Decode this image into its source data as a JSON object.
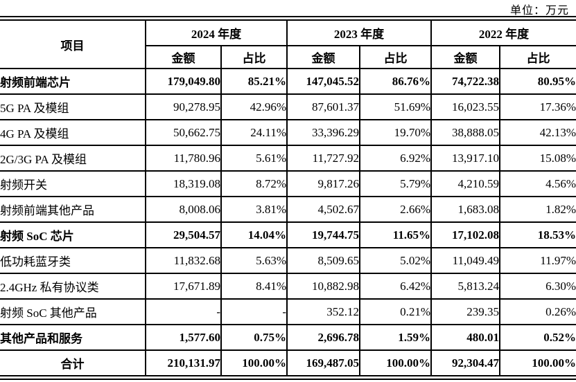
{
  "unit_label": "单位：万元",
  "table": {
    "header": {
      "item": "项目",
      "years": [
        "2024 年度",
        "2023 年度",
        "2022 年度"
      ],
      "sub_labels": [
        "金额",
        "占比"
      ]
    },
    "rows": [
      {
        "label": "射频前端芯片",
        "bold": true,
        "center": false,
        "values": [
          "179,049.80",
          "85.21%",
          "147,045.52",
          "86.76%",
          "74,722.38",
          "80.95%"
        ]
      },
      {
        "label": "5G PA 及模组",
        "bold": false,
        "center": false,
        "values": [
          "90,278.95",
          "42.96%",
          "87,601.37",
          "51.69%",
          "16,023.55",
          "17.36%"
        ]
      },
      {
        "label": "4G PA 及模组",
        "bold": false,
        "center": false,
        "values": [
          "50,662.75",
          "24.11%",
          "33,396.29",
          "19.70%",
          "38,888.05",
          "42.13%"
        ]
      },
      {
        "label": "2G/3G PA 及模组",
        "bold": false,
        "center": false,
        "values": [
          "11,780.96",
          "5.61%",
          "11,727.92",
          "6.92%",
          "13,917.10",
          "15.08%"
        ]
      },
      {
        "label": "射频开关",
        "bold": false,
        "center": false,
        "values": [
          "18,319.08",
          "8.72%",
          "9,817.26",
          "5.79%",
          "4,210.59",
          "4.56%"
        ]
      },
      {
        "label": "射频前端其他产品",
        "bold": false,
        "center": false,
        "values": [
          "8,008.06",
          "3.81%",
          "4,502.67",
          "2.66%",
          "1,683.08",
          "1.82%"
        ]
      },
      {
        "label": "射频 SoC 芯片",
        "bold": true,
        "center": false,
        "values": [
          "29,504.57",
          "14.04%",
          "19,744.75",
          "11.65%",
          "17,102.08",
          "18.53%"
        ]
      },
      {
        "label": "低功耗蓝牙类",
        "bold": false,
        "center": false,
        "values": [
          "11,832.68",
          "5.63%",
          "8,509.65",
          "5.02%",
          "11,049.49",
          "11.97%"
        ]
      },
      {
        "label": "2.4GHz 私有协议类",
        "bold": false,
        "center": false,
        "values": [
          "17,671.89",
          "8.41%",
          "10,882.98",
          "6.42%",
          "5,813.24",
          "6.30%"
        ]
      },
      {
        "label": "射频 SoC 其他产品",
        "bold": false,
        "center": false,
        "values": [
          "-",
          "-",
          "352.12",
          "0.21%",
          "239.35",
          "0.26%"
        ]
      },
      {
        "label": "其他产品和服务",
        "bold": true,
        "center": false,
        "values": [
          "1,577.60",
          "0.75%",
          "2,696.78",
          "1.59%",
          "480.01",
          "0.52%"
        ]
      },
      {
        "label": "合计",
        "bold": true,
        "center": true,
        "values": [
          "210,131.97",
          "100.00%",
          "169,487.05",
          "100.00%",
          "92,304.47",
          "100.00%"
        ]
      }
    ]
  }
}
